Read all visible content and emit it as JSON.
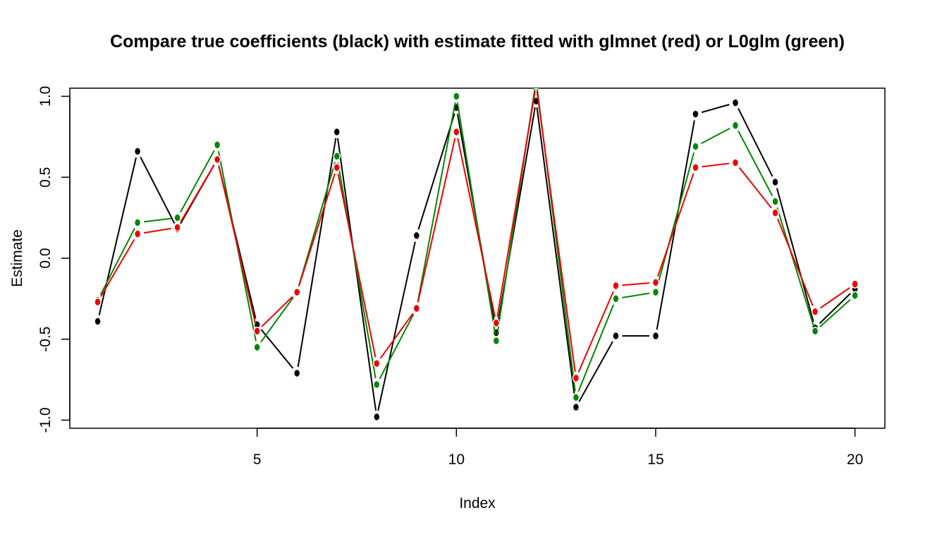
{
  "chart_data": {
    "type": "line",
    "title": "Compare true coefficients (black) with estimate fitted with glmnet (red) or L0glm (green)",
    "xlabel": "Index",
    "ylabel": "Estimate",
    "xlim": [
      0.3,
      20.75
    ],
    "ylim": [
      -1.05,
      1.05
    ],
    "x_ticks": [
      5,
      10,
      15,
      20
    ],
    "x_tick_labels": [
      "5",
      "10",
      "15",
      "20"
    ],
    "y_ticks": [
      -1.0,
      -0.5,
      0.0,
      0.5,
      1.0
    ],
    "y_tick_labels": [
      "-1.0",
      "-0.5",
      "0.0",
      "0.5",
      "1.0"
    ],
    "grid": false,
    "x": [
      1,
      2,
      3,
      4,
      5,
      6,
      7,
      8,
      9,
      10,
      11,
      12,
      13,
      14,
      15,
      16,
      17,
      18,
      19,
      20
    ],
    "series": [
      {
        "color": "#000000",
        "values": [
          -0.39,
          0.66,
          0.18,
          0.61,
          -0.41,
          -0.71,
          0.78,
          -0.98,
          0.14,
          0.93,
          -0.46,
          0.97,
          -0.92,
          -0.48,
          -0.48,
          0.89,
          0.96,
          0.47,
          -0.43,
          -0.19
        ]
      },
      {
        "color": "#008800",
        "values": [
          -0.26,
          0.22,
          0.25,
          0.7,
          -0.55,
          -0.21,
          0.63,
          -0.78,
          -0.31,
          1.0,
          -0.51,
          1.1,
          -0.86,
          -0.25,
          -0.21,
          0.69,
          0.82,
          0.35,
          -0.45,
          -0.23
        ]
      },
      {
        "color": "#ee0000",
        "values": [
          -0.27,
          0.15,
          0.19,
          0.61,
          -0.45,
          -0.21,
          0.56,
          -0.65,
          -0.31,
          0.78,
          -0.4,
          1.07,
          -0.74,
          -0.17,
          -0.15,
          0.56,
          0.59,
          0.28,
          -0.33,
          -0.16
        ]
      }
    ]
  }
}
